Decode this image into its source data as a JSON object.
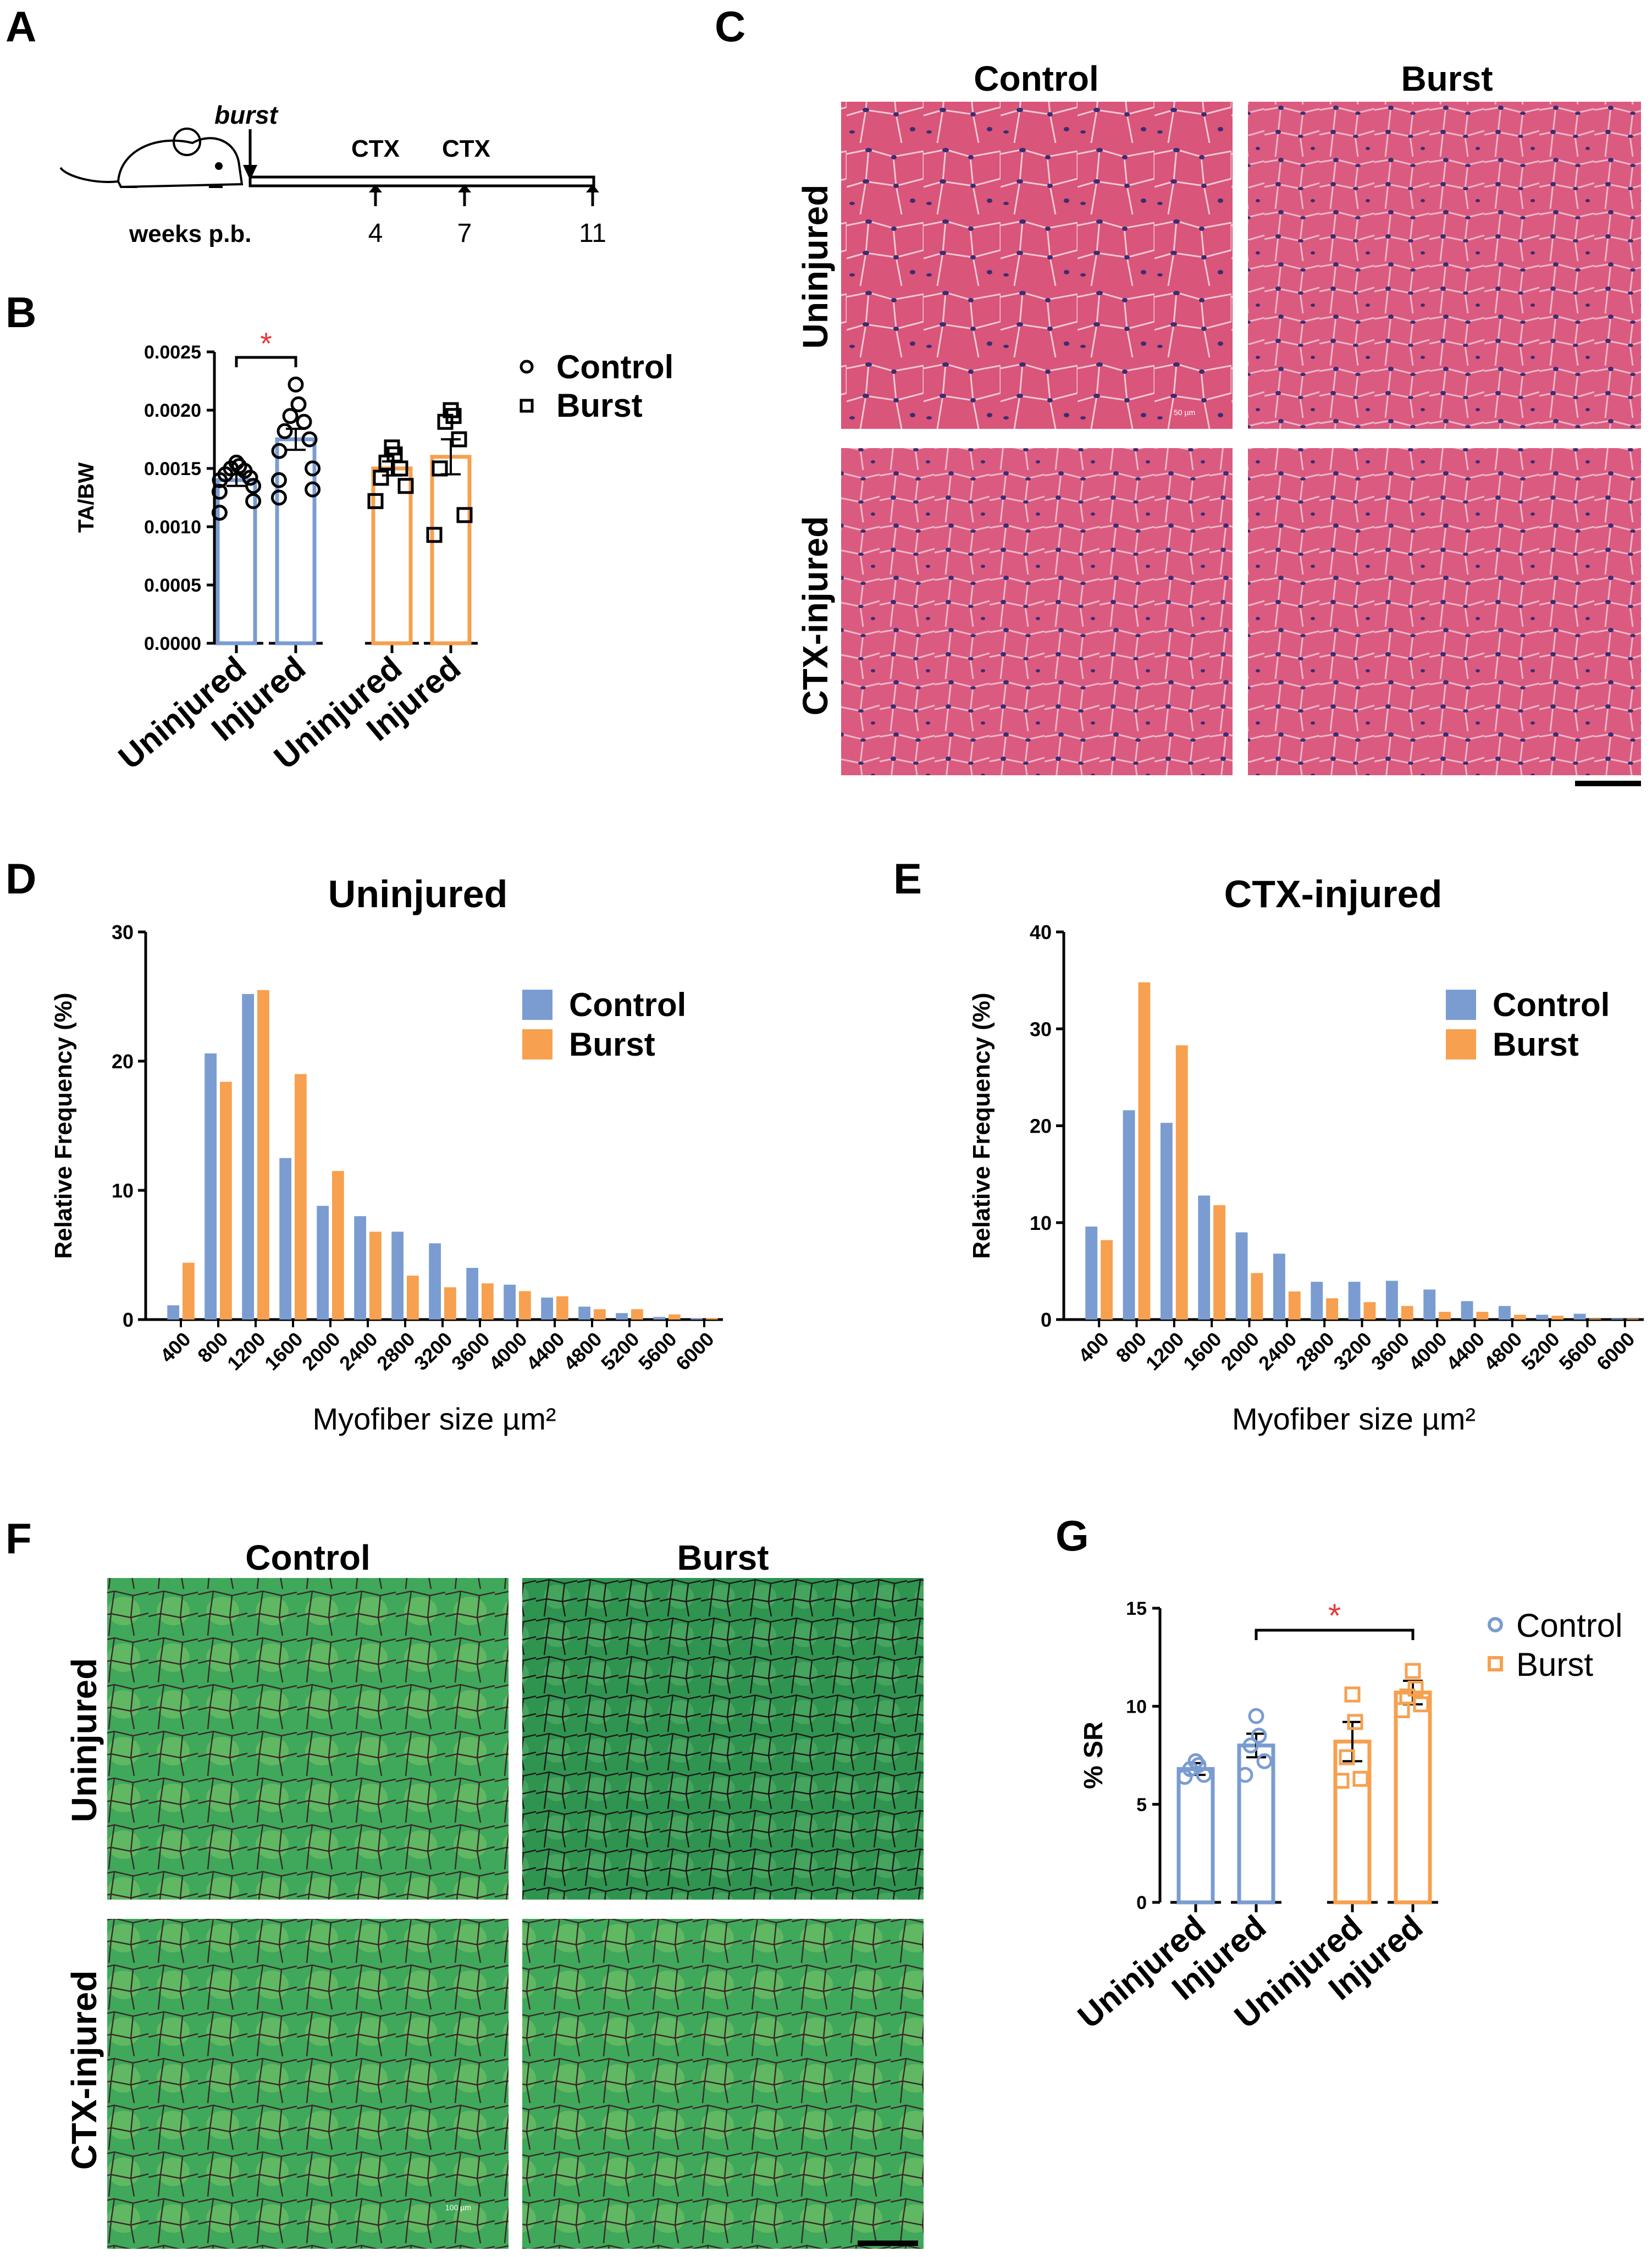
{
  "panels": {
    "A": "A",
    "B": "B",
    "C": "C",
    "D": "D",
    "E": "E",
    "F": "F",
    "G": "G"
  },
  "colors": {
    "control": "#7a9cd1",
    "burst": "#f7a04f",
    "star": "#e8383d",
    "axis": "#000000",
    "he_base": "#d9557a",
    "he_nuclei": "#3c2c73",
    "sr_base": "#38a155",
    "sr_collagen": "#8b2a3a"
  },
  "panel_a": {
    "burst_label": "burst",
    "ctx1": "CTX",
    "ctx2": "CTX",
    "weeks_label": "weeks p.b.",
    "week_4": "4",
    "week_7": "7",
    "week_11": "11"
  },
  "he_panel": {
    "col_control": "Control",
    "col_burst": "Burst",
    "row_uninjured": "Uninjured",
    "row_injured": "CTX-injured",
    "scale_text": "50 µm"
  },
  "sr_panel": {
    "col_control": "Control",
    "col_burst": "Burst",
    "row_uninjured": "Uninjured",
    "row_injured": "CTX-injured",
    "scale_text": "100 µm"
  },
  "legend": {
    "control": "Control",
    "burst": "Burst"
  },
  "sig_star": "*",
  "chart_data": [
    {
      "id": "B",
      "type": "bar",
      "ylabel": "TA/BW",
      "xlabel": "",
      "ylim": [
        0,
        0.0025
      ],
      "yticks": [
        "0.0000",
        "0.0005",
        "0.0010",
        "0.0015",
        "0.0020",
        "0.0025"
      ],
      "categories": [
        "Uninjured",
        "Injured",
        "Uninjured",
        "Injured"
      ],
      "groups": [
        "Control",
        "Control",
        "Burst",
        "Burst"
      ],
      "values": [
        0.0014,
        0.00175,
        0.0015,
        0.0016
      ],
      "sem": [
        5e-05,
        9e-05,
        6e-05,
        0.00015
      ],
      "points": [
        [
          0.00155,
          0.00152,
          0.0015,
          0.00148,
          0.00145,
          0.00142,
          0.0014,
          0.00135,
          0.0013,
          0.00122,
          0.00112
        ],
        [
          0.00222,
          0.00205,
          0.00195,
          0.0019,
          0.00182,
          0.00175,
          0.00165,
          0.0015,
          0.0014,
          0.00132,
          0.00125
        ],
        [
          0.00168,
          0.00162,
          0.00155,
          0.0015,
          0.00142,
          0.00135,
          0.00122
        ],
        [
          0.002,
          0.00195,
          0.0019,
          0.00175,
          0.0015,
          0.0011,
          0.00093
        ]
      ],
      "legend": [
        "Control",
        "Burst"
      ],
      "significance": {
        "between": [
          0,
          1
        ],
        "label": "*"
      }
    },
    {
      "id": "D",
      "type": "bar",
      "title": "Uninjured",
      "xlabel": "Myofiber size µm²",
      "ylabel": "Relative Frequency (%)",
      "ylim": [
        0,
        30
      ],
      "yticks": [
        "0",
        "10",
        "20",
        "30"
      ],
      "categories": [
        "400",
        "800",
        "1200",
        "1600",
        "2000",
        "2400",
        "2800",
        "3200",
        "3600",
        "4000",
        "4400",
        "4800",
        "5200",
        "5600",
        "6000"
      ],
      "series": [
        {
          "name": "Control",
          "values": [
            1.1,
            20.6,
            25.2,
            12.5,
            8.8,
            8.0,
            6.8,
            5.9,
            4.0,
            2.7,
            1.7,
            1.0,
            0.5,
            0.2,
            0.1
          ]
        },
        {
          "name": "Burst",
          "values": [
            4.4,
            18.4,
            25.5,
            19.0,
            11.5,
            6.8,
            3.4,
            2.5,
            2.8,
            2.2,
            1.8,
            0.8,
            0.8,
            0.4,
            0.1
          ]
        }
      ]
    },
    {
      "id": "E",
      "type": "bar",
      "title": "CTX-injured",
      "xlabel": "Myofiber size µm²",
      "ylabel": "Relative Frequency (%)",
      "ylim": [
        0,
        40
      ],
      "yticks": [
        "0",
        "10",
        "20",
        "30",
        "40"
      ],
      "categories": [
        "400",
        "800",
        "1200",
        "1600",
        "2000",
        "2400",
        "2800",
        "3200",
        "3600",
        "4000",
        "4400",
        "4800",
        "5200",
        "5600",
        "6000"
      ],
      "series": [
        {
          "name": "Control",
          "values": [
            9.6,
            21.6,
            20.3,
            12.8,
            9.0,
            6.8,
            3.9,
            3.9,
            4.0,
            3.1,
            1.9,
            1.4,
            0.5,
            0.6,
            0.1
          ]
        },
        {
          "name": "Burst",
          "values": [
            8.2,
            34.8,
            28.3,
            11.8,
            4.8,
            2.9,
            2.2,
            1.8,
            1.4,
            0.8,
            0.8,
            0.5,
            0.4,
            0.1,
            0.1
          ]
        }
      ]
    },
    {
      "id": "G",
      "type": "bar",
      "ylabel": "% SR",
      "xlabel": "",
      "ylim": [
        0,
        15
      ],
      "yticks": [
        "0",
        "5",
        "10",
        "15"
      ],
      "categories": [
        "Uninjured",
        "Injured",
        "Uninjured",
        "Injured"
      ],
      "groups": [
        "Control",
        "Control",
        "Burst",
        "Burst"
      ],
      "values": [
        6.8,
        8.0,
        8.2,
        10.7
      ],
      "sem": [
        0.3,
        0.6,
        1.0,
        0.6
      ],
      "points": [
        [
          7.2,
          7.0,
          6.8,
          6.5,
          6.4
        ],
        [
          9.5,
          8.5,
          8.0,
          7.2,
          6.5
        ],
        [
          10.6,
          9.2,
          7.4,
          6.3,
          6.2
        ],
        [
          11.8,
          10.9,
          10.5,
          10.1,
          9.8
        ]
      ],
      "legend": [
        "Control",
        "Burst"
      ],
      "significance": {
        "between": [
          1,
          3
        ],
        "label": "*"
      }
    }
  ]
}
